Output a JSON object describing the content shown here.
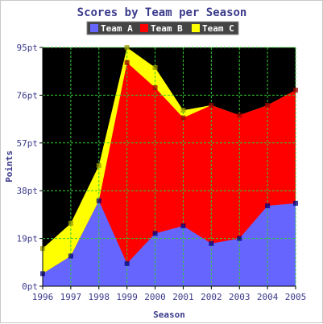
{
  "chart_data": {
    "type": "area",
    "stacked": true,
    "title": "Scores by Team per Season",
    "xlabel": "Season",
    "ylabel": "Points",
    "x": [
      "1996",
      "1997",
      "1998",
      "1999",
      "2000",
      "2001",
      "2002",
      "2003",
      "2004",
      "2005"
    ],
    "ylim": [
      0,
      95
    ],
    "yticks": [
      0,
      19,
      38,
      57,
      76,
      95
    ],
    "ytick_labels": [
      "0pt",
      "19pt",
      "38pt",
      "57pt",
      "76pt",
      "95pt"
    ],
    "grid": true,
    "legend_position": "top",
    "plot_background": "#000000",
    "grid_color": "#33cc33",
    "series": [
      {
        "name": "Team A",
        "color": "#6666ff",
        "values": [
          5,
          12,
          34,
          9,
          21,
          24,
          17,
          19,
          32,
          33
        ]
      },
      {
        "name": "Team B",
        "color": "#ff0000",
        "values": [
          0,
          0,
          0,
          80,
          58,
          43,
          55,
          49,
          40,
          45
        ]
      },
      {
        "name": "Team C",
        "color": "#ffff00",
        "values": [
          10,
          13,
          14,
          6,
          8,
          3,
          0,
          0,
          0,
          0
        ]
      }
    ],
    "marker_colors": [
      "#000080",
      "#990000",
      "#999900"
    ]
  }
}
